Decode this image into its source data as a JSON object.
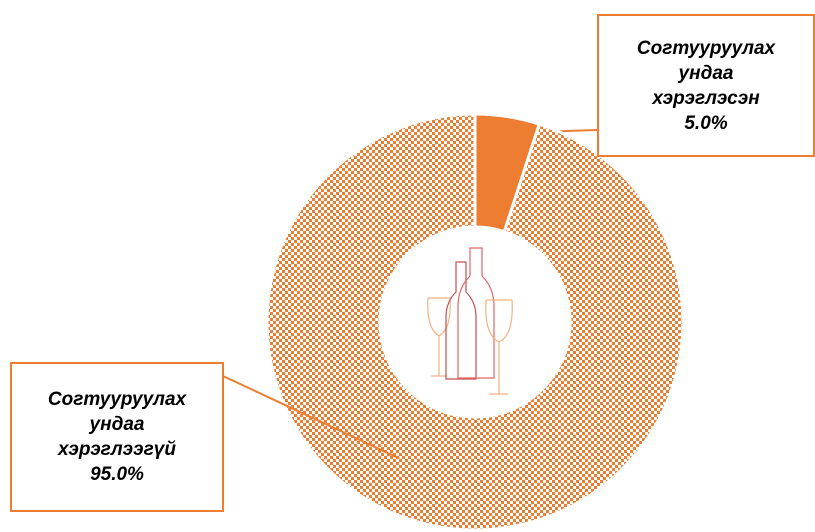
{
  "chart_data": {
    "type": "donut",
    "categories": [
      "Согтууруулах ундаа хэрэглэсэн",
      "Согтууруулах ундаа хэрэглээгүй"
    ],
    "values": [
      5.0,
      95.0
    ],
    "value_labels": [
      "5.0%",
      "95.0%"
    ],
    "colors": [
      "#ed7d31",
      "#ed7d31"
    ],
    "fill_styles": [
      "solid",
      "checker"
    ]
  }
}
